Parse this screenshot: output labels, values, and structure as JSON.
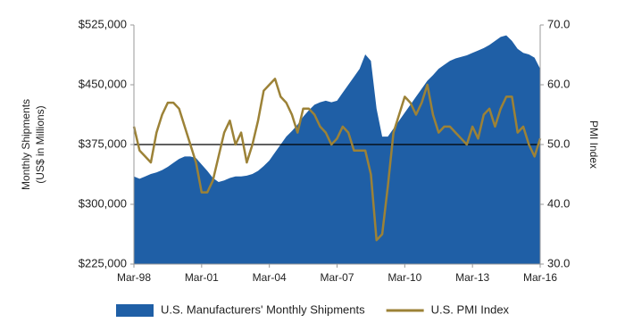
{
  "chart_data": {
    "type": "area-line",
    "categories": [
      "Mar-98",
      null,
      null,
      null,
      null,
      null,
      null,
      null,
      null,
      null,
      null,
      null,
      "Mar-01",
      null,
      null,
      null,
      null,
      null,
      null,
      null,
      null,
      null,
      null,
      null,
      "Mar-04",
      null,
      null,
      null,
      null,
      null,
      null,
      null,
      null,
      null,
      null,
      null,
      "Mar-07",
      null,
      null,
      null,
      null,
      null,
      null,
      null,
      null,
      null,
      null,
      null,
      "Mar-10",
      null,
      null,
      null,
      null,
      null,
      null,
      null,
      null,
      null,
      null,
      null,
      "Mar-13",
      null,
      null,
      null,
      null,
      null,
      null,
      null,
      null,
      null,
      null,
      null,
      "Mar-16"
    ],
    "series": [
      {
        "name": "U.S. Manufacturers' Monthly Shipments",
        "type": "area",
        "color": "#1f5fa6",
        "values": [
          335000,
          332000,
          335000,
          338000,
          340000,
          343000,
          347000,
          352000,
          357000,
          360000,
          360000,
          358000,
          350000,
          342000,
          333000,
          328000,
          330000,
          333000,
          335000,
          335000,
          336000,
          338000,
          342000,
          348000,
          355000,
          365000,
          375000,
          385000,
          392000,
          400000,
          410000,
          418000,
          425000,
          428000,
          430000,
          428000,
          430000,
          440000,
          450000,
          460000,
          470000,
          488000,
          480000,
          420000,
          385000,
          385000,
          395000,
          405000,
          415000,
          425000,
          435000,
          445000,
          455000,
          462000,
          470000,
          475000,
          480000,
          483000,
          485000,
          487000,
          490000,
          493000,
          496000,
          500000,
          505000,
          510000,
          512000,
          505000,
          495000,
          490000,
          488000,
          484000,
          470000
        ]
      },
      {
        "name": "U.S. PMI Index",
        "type": "line",
        "axis": "y2",
        "color": "#9c8237",
        "values": [
          53,
          49,
          48,
          47,
          52,
          55,
          57,
          57,
          56,
          53,
          50,
          47,
          42,
          42,
          44,
          48,
          52,
          54,
          50,
          52,
          47,
          50,
          54,
          59,
          60,
          61,
          58,
          57,
          55,
          52,
          56,
          56,
          55,
          53,
          52,
          50,
          51,
          53,
          52,
          49,
          49,
          49,
          45,
          34,
          35,
          43,
          52,
          55,
          58,
          57,
          55,
          57,
          60,
          55,
          52,
          53,
          53,
          52,
          51,
          50,
          53,
          51,
          55,
          56,
          53,
          56,
          58,
          58,
          52,
          53,
          50,
          48,
          51
        ]
      }
    ],
    "ylabel": [
      "Monthly Shipments",
      "(US$ in Millions)"
    ],
    "y2label": "PMI Index",
    "ylim": [
      225000,
      525000
    ],
    "yticks": [
      {
        "value": 225000,
        "label": "$225,000"
      },
      {
        "value": 300000,
        "label": "$300,000"
      },
      {
        "value": 375000,
        "label": "$375,000"
      },
      {
        "value": 450000,
        "label": "$450,000"
      },
      {
        "value": 525000,
        "label": "$525,000"
      }
    ],
    "y2lim": [
      30,
      70
    ],
    "y2ticks": [
      {
        "value": 30,
        "label": "30.0"
      },
      {
        "value": 40,
        "label": "40.0"
      },
      {
        "value": 50,
        "label": "50.0"
      },
      {
        "value": 60,
        "label": "60.0"
      },
      {
        "value": 70,
        "label": "70.0"
      }
    ],
    "reference_line": 375000,
    "legend": "bottom"
  }
}
